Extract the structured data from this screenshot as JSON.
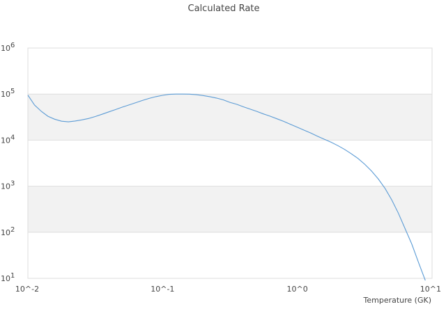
{
  "chart_data": {
    "type": "line",
    "title": "Calculated Rate",
    "xlabel": "Temperature (GK)",
    "ylabel": "",
    "x_scale": "log",
    "y_scale": "log",
    "xlim": [
      0.01,
      10
    ],
    "ylim": [
      10,
      1000000
    ],
    "x_ticks": [
      {
        "value": 0.01,
        "label": "10^-2"
      },
      {
        "value": 0.1,
        "label": "10^-1"
      },
      {
        "value": 1,
        "label": "10^0"
      },
      {
        "value": 10,
        "label": "10^1"
      }
    ],
    "y_ticks": [
      {
        "value": 10,
        "base": "10",
        "exp": "1"
      },
      {
        "value": 100,
        "base": "10",
        "exp": "2"
      },
      {
        "value": 1000,
        "base": "10",
        "exp": "3"
      },
      {
        "value": 10000,
        "base": "10",
        "exp": "4"
      },
      {
        "value": 100000,
        "base": "10",
        "exp": "5"
      },
      {
        "value": 1000000,
        "base": "10",
        "exp": "6"
      }
    ],
    "grid": true,
    "band_fill": "#f2f2f2",
    "grid_color": "#dddddd",
    "line_color": "#5b9bd5",
    "series": [
      {
        "x": [
          0.01,
          0.0112,
          0.0126,
          0.0141,
          0.0158,
          0.0178,
          0.02,
          0.0224,
          0.0251,
          0.0282,
          0.0316,
          0.0355,
          0.0398,
          0.0447,
          0.0501,
          0.0562,
          0.0631,
          0.0708,
          0.0794,
          0.0891,
          0.1,
          0.112,
          0.126,
          0.141,
          0.158,
          0.178,
          0.2,
          0.224,
          0.251,
          0.282,
          0.316,
          0.355,
          0.398,
          0.447,
          0.501,
          0.562,
          0.631,
          0.708,
          0.794,
          0.891,
          1.0,
          1.12,
          1.26,
          1.41,
          1.58,
          1.78,
          2.0,
          2.24,
          2.51,
          2.82,
          3.16,
          3.55,
          3.98,
          4.47,
          5.01,
          5.62,
          6.31,
          7.08,
          7.94,
          8.91
        ],
        "y": [
          95000,
          58000,
          42000,
          33000,
          28500,
          25800,
          25000,
          26000,
          27500,
          29500,
          32500,
          36500,
          41000,
          46000,
          52000,
          58000,
          65000,
          72500,
          80500,
          88000,
          94000,
          98500,
          100000,
          100000,
          99500,
          97000,
          93000,
          88000,
          82000,
          75000,
          66000,
          60000,
          53000,
          47000,
          42000,
          37000,
          33000,
          29000,
          25500,
          22000,
          19000,
          16500,
          14200,
          12200,
          10500,
          9000,
          7600,
          6300,
          5100,
          4000,
          3000,
          2150,
          1450,
          900,
          510,
          260,
          120,
          55,
          22,
          9
        ]
      }
    ]
  }
}
